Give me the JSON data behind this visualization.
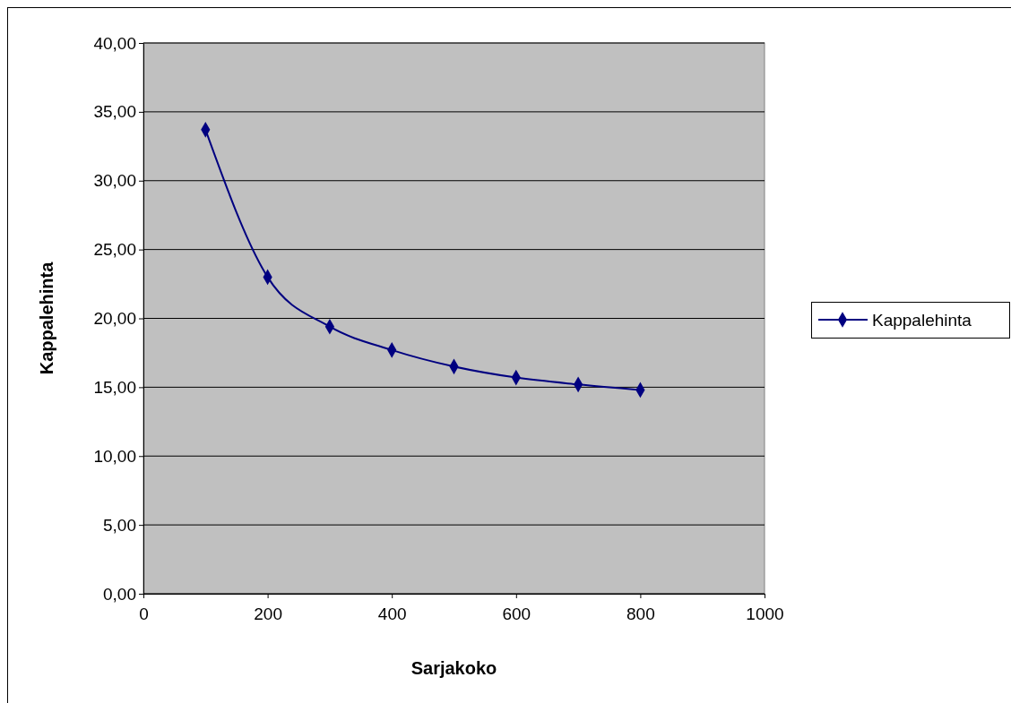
{
  "chart_data": {
    "type": "line",
    "xlabel": "Sarjakoko",
    "ylabel": "Kappalehinta",
    "x": [
      100,
      200,
      300,
      400,
      500,
      600,
      700,
      800
    ],
    "series": [
      {
        "name": "Kappalehinta",
        "color": "#000080",
        "values": [
          33.7,
          23.0,
          19.4,
          17.7,
          16.5,
          15.7,
          15.2,
          14.8
        ]
      }
    ],
    "xlim": [
      0,
      1000
    ],
    "xticks": [
      0,
      200,
      400,
      600,
      800,
      1000
    ],
    "ylim": [
      0,
      40
    ],
    "yticks": [
      {
        "value": 0,
        "label": "0,00"
      },
      {
        "value": 5,
        "label": "5,00"
      },
      {
        "value": 10,
        "label": "10,00"
      },
      {
        "value": 15,
        "label": "15,00"
      },
      {
        "value": 20,
        "label": "20,00"
      },
      {
        "value": 25,
        "label": "25,00"
      },
      {
        "value": 30,
        "label": "30,00"
      },
      {
        "value": 35,
        "label": "35,00"
      },
      {
        "value": 40,
        "label": "40,00"
      }
    ],
    "grid": "y",
    "legend": "right",
    "marker": "diamond",
    "line_style": "solid"
  }
}
